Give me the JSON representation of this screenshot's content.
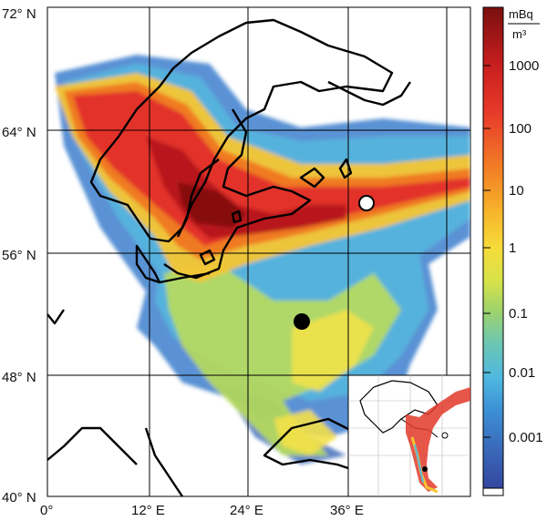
{
  "map": {
    "lat_labels": [
      "72° N",
      "64° N",
      "56° N",
      "48° N",
      "40° N"
    ],
    "lon_labels": [
      "0°",
      "12° E",
      "24° E",
      "36° E"
    ],
    "gridlines": true,
    "inset": true,
    "markers": [
      {
        "name": "open-circle-marker",
        "fill": "#ffffff"
      },
      {
        "name": "filled-circle-marker",
        "fill": "#000000"
      }
    ]
  },
  "colorbar": {
    "unit_numerator": "mBq",
    "unit_denominator": "m³",
    "tick_labels": [
      "1000",
      "100",
      "10",
      "1",
      "0.1",
      "0.01",
      "0.001"
    ],
    "colors": [
      "#7a0f0f",
      "#c81e1e",
      "#e83a2a",
      "#f27b25",
      "#f6b12a",
      "#f6dc3a",
      "#d6e24a",
      "#9fd36a",
      "#6cc6b4",
      "#4fb8e0",
      "#3c8fd4",
      "#3a68b8",
      "#3447a0"
    ]
  }
}
